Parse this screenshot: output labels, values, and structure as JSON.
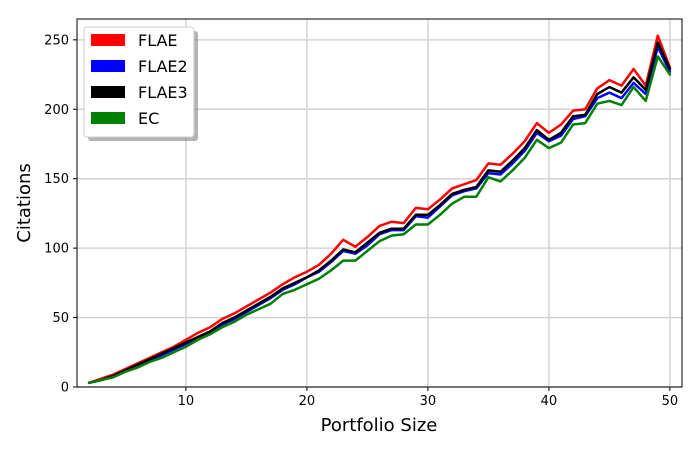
{
  "chart_data": {
    "type": "line",
    "title": "",
    "xlabel": "Portfolio Size",
    "ylabel": "Citations",
    "xlim": [
      1,
      51
    ],
    "ylim": [
      0,
      265
    ],
    "xticks": [
      10,
      20,
      30,
      40,
      50
    ],
    "yticks": [
      0,
      50,
      100,
      150,
      200,
      250
    ],
    "grid": true,
    "legend_position": "top-left",
    "x": [
      2,
      3,
      4,
      5,
      6,
      7,
      8,
      9,
      10,
      11,
      12,
      13,
      14,
      15,
      16,
      17,
      18,
      19,
      20,
      21,
      22,
      23,
      24,
      25,
      26,
      27,
      28,
      29,
      30,
      31,
      32,
      33,
      34,
      35,
      36,
      37,
      38,
      39,
      40,
      41,
      42,
      43,
      44,
      45,
      46,
      47,
      48,
      49,
      50
    ],
    "series": [
      {
        "name": "FLAE",
        "color": "#ff0000",
        "values": [
          3,
          6,
          9,
          13,
          17,
          21,
          25,
          29,
          34,
          39,
          43,
          49,
          53,
          58,
          63,
          68,
          74,
          79,
          83,
          88,
          96,
          106,
          101,
          108,
          116,
          119,
          118,
          129,
          128,
          135,
          143,
          146,
          149,
          161,
          160,
          168,
          177,
          190,
          183,
          189,
          199,
          200,
          215,
          221,
          217,
          229,
          217,
          253,
          230
        ]
      },
      {
        "name": "FLAE2",
        "color": "#0000ff",
        "values": [
          3,
          5,
          8,
          12,
          16,
          19,
          23,
          27,
          31,
          36,
          40,
          45,
          49,
          54,
          59,
          64,
          70,
          74,
          79,
          83,
          90,
          98,
          96,
          102,
          110,
          113,
          113,
          123,
          122,
          130,
          138,
          141,
          143,
          154,
          153,
          161,
          170,
          183,
          177,
          181,
          193,
          195,
          208,
          212,
          208,
          219,
          211,
          245,
          227
        ]
      },
      {
        "name": "FLAE3",
        "color": "#000000",
        "values": [
          3,
          5,
          8,
          12,
          16,
          20,
          24,
          28,
          32,
          36,
          40,
          46,
          50,
          55,
          60,
          65,
          71,
          75,
          79,
          84,
          91,
          99,
          97,
          104,
          111,
          114,
          114,
          124,
          124,
          131,
          139,
          142,
          144,
          156,
          155,
          163,
          172,
          185,
          178,
          183,
          195,
          196,
          211,
          216,
          212,
          223,
          214,
          248,
          229
        ]
      },
      {
        "name": "EC",
        "color": "#008000",
        "values": [
          3,
          5,
          7,
          11,
          14,
          18,
          21,
          25,
          29,
          34,
          38,
          43,
          47,
          52,
          56,
          60,
          67,
          70,
          74,
          78,
          84,
          91,
          91,
          98,
          105,
          109,
          110,
          117,
          117,
          124,
          132,
          137,
          137,
          151,
          148,
          156,
          165,
          178,
          172,
          176,
          189,
          190,
          204,
          206,
          203,
          216,
          206,
          238,
          225
        ]
      }
    ]
  }
}
